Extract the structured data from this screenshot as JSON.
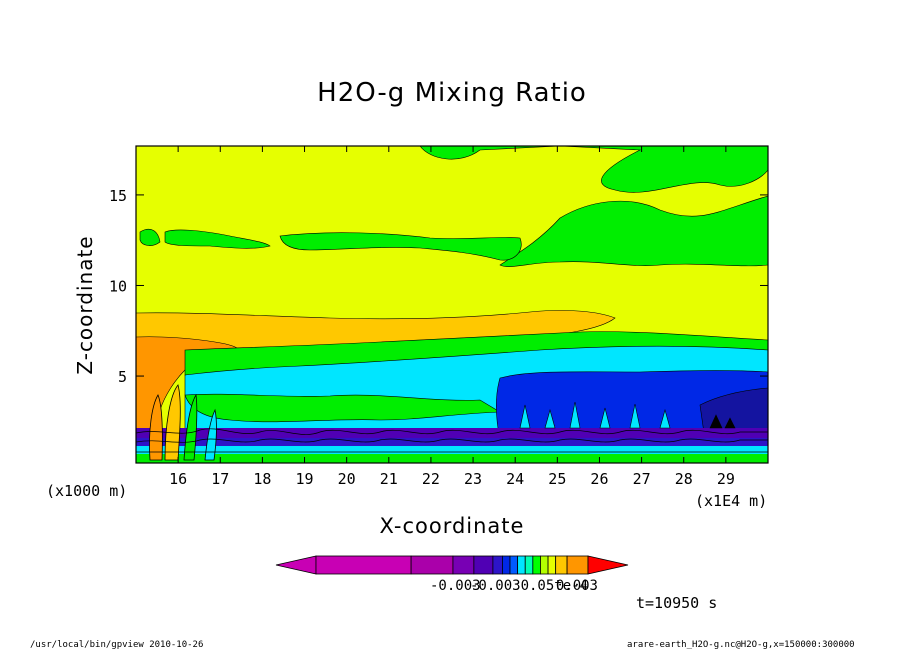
{
  "chart_data": {
    "type": "heatmap",
    "title": "H2O-g Mixing Ratio",
    "xlabel": "X-coordinate",
    "ylabel": "Z-coordinate",
    "x_unit_left": "(x1000 m)",
    "x_unit_right": "(x1E4 m)",
    "xlim": [
      15.0,
      30.0
    ],
    "ylim": [
      0.2,
      17.7
    ],
    "xticks": [
      "16",
      "17",
      "18",
      "19",
      "20",
      "21",
      "22",
      "23",
      "24",
      "25",
      "26",
      "27",
      "28",
      "29"
    ],
    "yticks": [
      "5",
      "10",
      "15"
    ],
    "colorbar": {
      "colors": [
        "#c800b4",
        "#aa00aa",
        "#7800b4",
        "#5000b4",
        "#2d14c8",
        "#0028e6",
        "#005aff",
        "#00e6ff",
        "#00ffb4",
        "#00ff00",
        "#b4ff00",
        "#e6ff00",
        "#ffc800",
        "#ff9600",
        "#ff0000"
      ],
      "tick_labels": [
        "-0.003",
        "-0.0030.05te-4",
        "0.003"
      ]
    },
    "regions": [
      {
        "level": "yellow",
        "color": "#e6ff00"
      },
      {
        "level": "green",
        "color": "#00ee00"
      },
      {
        "level": "orange-light",
        "color": "#ffc800"
      },
      {
        "level": "orange",
        "color": "#ff9600"
      },
      {
        "level": "cyan",
        "color": "#00e6ff"
      },
      {
        "level": "blue",
        "color": "#0028e6"
      },
      {
        "level": "dark-blue",
        "color": "#1414a0"
      }
    ]
  },
  "annotations": {
    "time": "t=10950 s",
    "footer_left": "/usr/local/bin/gpview   2010-10-26",
    "footer_right": "arare-earth_H2O-g.nc@H2O-g,x=150000:300000"
  }
}
